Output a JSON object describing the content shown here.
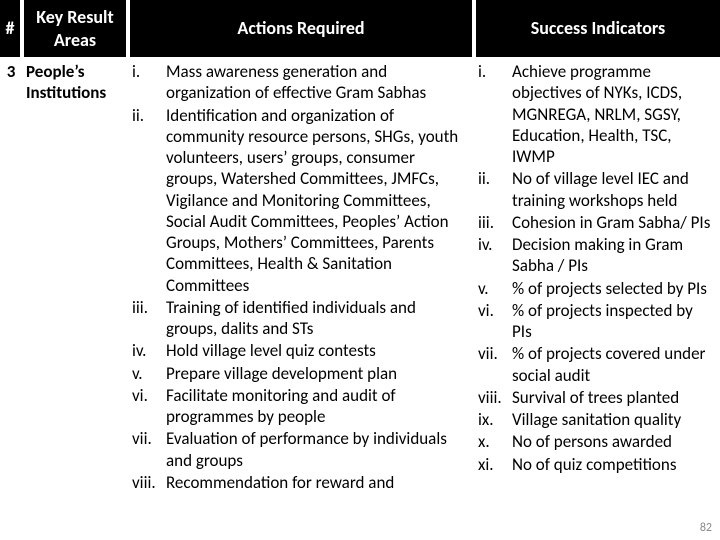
{
  "page_number": "82",
  "columns": {
    "num": "#",
    "kra": "Key Result Areas",
    "actions": "Actions Required",
    "success": "Success Indicators"
  },
  "row": {
    "num": "3",
    "kra": "People’s Institutions"
  },
  "romanMarkers": [
    "i.",
    "ii.",
    "iii.",
    "iv.",
    "v.",
    "vi.",
    "vii.",
    "viii.",
    "ix.",
    "x.",
    "xi."
  ],
  "actions": [
    "Mass awareness generation and organization of effective Gram Sabhas",
    "Identification and organization  of community resource persons, SHGs, youth volunteers, users’ groups, consumer groups, Watershed Committees, JMFCs, Vigilance and Monitoring Committees, Social Audit Committees, Peoples’ Action Groups, Mothers’ Committees, Parents Committees, Health & Sanitation Committees",
    "Training of identified individuals and groups, dalits and STs",
    "Hold village level quiz contests",
    "Prepare village development plan",
    "Facilitate monitoring and audit of programmes by people",
    "Evaluation of performance by individuals and groups",
    "Recommendation for reward and"
  ],
  "success": [
    "Achieve programme objectives of NYKs, ICDS, MGNREGA, NRLM, SGSY, Education, Health, TSC, IWMP",
    "No of village level  IEC and training workshops held",
    "Cohesion in Gram Sabha/ PIs",
    "Decision making in Gram Sabha / PIs",
    "% of projects selected by PIs",
    "% of projects inspected by PIs",
    "% of projects covered under social audit",
    "Survival of trees planted",
    "Village sanitation quality",
    "No of persons awarded",
    "No of quiz competitions"
  ]
}
